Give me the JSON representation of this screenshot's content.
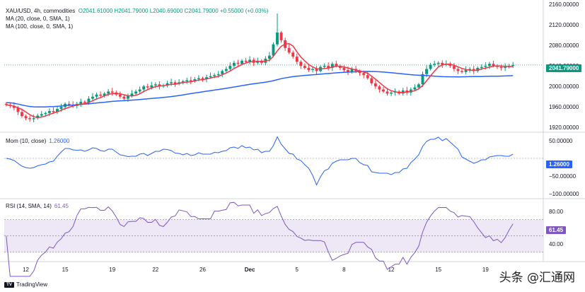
{
  "header": {
    "symbol": "XAU/USD, 4h, commodities",
    "ohlc": "O2041.61000 H2041.79000 L2040.69000 C2041.79000 +0.55000 (+0.03%)",
    "ma1": "MA (20, close, 0, SMA, 1)",
    "ma2": "MA (100, close, 0, SMA, 1)"
  },
  "mom": {
    "title": "Mom (10, close)",
    "value": "1.26000"
  },
  "rsi": {
    "title": "RSI (14, SMA, 14)",
    "value": "61.45"
  },
  "price_tag": "2041.79000",
  "mom_tag": "1.26000",
  "rsi_tag": "61.45",
  "footer": {
    "brand": "TradingView"
  },
  "watermark": {
    "text": "头条 @汇通网"
  },
  "colors": {
    "up": "#089981",
    "down": "#f23645",
    "ma20": "#f23645",
    "ma100": "#2962ff",
    "mom": "#2962ff",
    "rsi": "#7e57c2",
    "rsiband": "#ede7f6"
  },
  "chart_data": {
    "type": "candlestick",
    "price_axis": {
      "ticks": [
        "2160.00000",
        "2120.00000",
        "2080.00000",
        "2040.00000",
        "2000.00000",
        "1960.00000",
        "1920.00000"
      ],
      "range": [
        1912,
        2163
      ]
    },
    "time_axis": {
      "ticks": [
        "12",
        "15",
        "19",
        "22",
        "26",
        "Dec",
        "5",
        "8",
        "12",
        "15",
        "19"
      ]
    },
    "mom_axis": {
      "ticks": [
        "50.00000",
        "−50.00000",
        "−100.00000"
      ],
      "range": [
        -112,
        72
      ]
    },
    "rsi_axis": {
      "ticks": [
        "80.00",
        "40.00"
      ],
      "range": [
        20,
        95
      ],
      "band": [
        30,
        70
      ]
    },
    "close": [
      1964,
      1962,
      1958,
      1950,
      1942,
      1938,
      1936,
      1938,
      1943,
      1946,
      1948,
      1952,
      1950,
      1956,
      1960,
      1966,
      1964,
      1962,
      1966,
      1970,
      1968,
      1976,
      1980,
      1984,
      1982,
      1986,
      1990,
      1988,
      1984,
      1980,
      1976,
      1981,
      1986,
      1990,
      1994,
      2000,
      1998,
      2002,
      2004,
      2000,
      2002,
      2006,
      2008,
      2005,
      2008,
      2010,
      2012,
      2010,
      2014,
      2016,
      2014,
      2018,
      2020,
      2022,
      2024,
      2030,
      2034,
      2040,
      2046,
      2044,
      2050,
      2048,
      2052,
      2046,
      2050,
      2046,
      2054,
      2060,
      2082,
      2105,
      2090,
      2075,
      2066,
      2058,
      2048,
      2040,
      2036,
      2032,
      2034,
      2030,
      2038,
      2040,
      2036,
      2044,
      2040,
      2036,
      2032,
      2028,
      2034,
      2030,
      2026,
      2022,
      2016,
      2006,
      2000,
      1994,
      1990,
      1986,
      1988,
      1990,
      1986,
      1992,
      1988,
      1994,
      1998,
      2004,
      2024,
      2034,
      2042,
      2044,
      2046,
      2042,
      2044,
      2040,
      2034,
      2030,
      2028,
      2032,
      2034,
      2030,
      2036,
      2038,
      2040,
      2044,
      2040,
      2038,
      2036,
      2038,
      2040,
      2041.79
    ],
    "ma20_last": 2034,
    "ma100_last": 2030,
    "mom_last": 1.26,
    "rsi_last": 61.45
  }
}
